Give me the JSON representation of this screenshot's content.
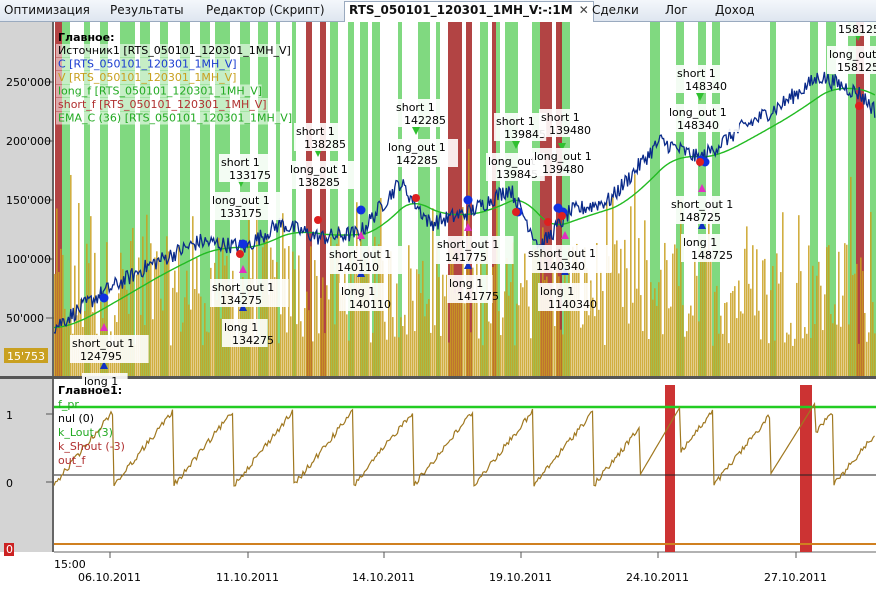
{
  "tabs": [
    {
      "label": "Оптимизация",
      "active": false
    },
    {
      "label": "Результаты",
      "active": false
    },
    {
      "label": "Редактор (Скрипт)",
      "active": false
    },
    {
      "label": "RTS_050101_120301_1MH_V:-:1M",
      "active": true
    },
    {
      "label": "Сделки",
      "active": false
    },
    {
      "label": "Лог",
      "active": false
    },
    {
      "label": "Доход",
      "active": false
    }
  ],
  "icons": {
    "close": "close-icon",
    "signal_long": "blue-up-arrow",
    "signal_short": "green-down-arrow",
    "marker_up": "magenta-triangle-up",
    "marker_down": "red-triangle-down"
  },
  "colors": {
    "price": "#0a2a8a",
    "ema": "#22bb22",
    "volume": "#c9a020",
    "long_band": "#55cc55",
    "short_band": "#aa3030",
    "f_pr": "#22cc22",
    "nul": "#222222",
    "k_shout": "#d08020",
    "out_f": "#cc3333",
    "osc": "#a07820"
  },
  "main_panel": {
    "title": "Главное:",
    "legend": [
      {
        "text": "Источник1 [RTS_050101_120301_1MH_V]",
        "color": "#000000"
      },
      {
        "text": "C [RTS_050101_120301_1MH_V]",
        "color": "#1a3cd0"
      },
      {
        "text": "V [RTS_050101_120301_1MH_V]",
        "color": "#c9a020"
      },
      {
        "text": "long_f [RTS_050101_120301_1MH_V]",
        "color": "#22aa22"
      },
      {
        "text": "short_f [RTS_050101_120301_1MH_V]",
        "color": "#b03030"
      },
      {
        "text": "EMA_C (36) [RTS_050101_120301_1MH_V]",
        "color": "#22aa22"
      }
    ],
    "y_ticks": [
      "250'000",
      "200'000",
      "150'000",
      "100'000",
      "50'000"
    ],
    "volume_label": "15'753",
    "labels": [
      {
        "l1": "short 1",
        "l2": "133175"
      },
      {
        "l1": "long_out 1",
        "l2": "133175"
      },
      {
        "l1": "short_out 1",
        "l2": "134275"
      },
      {
        "l1": "long 1",
        "l2": "134275"
      },
      {
        "l1": "short_out 1",
        "l2": "124795"
      },
      {
        "l1": "long 1",
        "l2": ""
      },
      {
        "l1": "short 1",
        "l2": "138285"
      },
      {
        "l1": "long_out 1",
        "l2": "138285"
      },
      {
        "l1": "short_out 1",
        "l2": "140110"
      },
      {
        "l1": "long 1",
        "l2": "140110"
      },
      {
        "l1": "short 1",
        "l2": "142285"
      },
      {
        "l1": "long_out 1",
        "l2": "142285"
      },
      {
        "l1": "short_out 1",
        "l2": "141775"
      },
      {
        "l1": "long 1",
        "l2": "141775"
      },
      {
        "l1": "short 1",
        "l2": "139845"
      },
      {
        "l1": "long_out",
        "l2": "139845"
      },
      {
        "l1": "short 1",
        "l2": "139480"
      },
      {
        "l1": "long_out 1",
        "l2": "139480"
      },
      {
        "l1": "sshort_out 1",
        "l2": "1140340"
      },
      {
        "l1": "long 1",
        "l2": "1140340"
      },
      {
        "l1": "short 1",
        "l2": "148340"
      },
      {
        "l1": "long_out 1",
        "l2": "148340"
      },
      {
        "l1": "short_out 1",
        "l2": "148725"
      },
      {
        "l1": "long 1",
        "l2": "148725"
      },
      {
        "l1": "158125",
        "l2": ""
      },
      {
        "l1": "long_out",
        "l2": "158125"
      }
    ]
  },
  "sub_panel": {
    "title": "Главное1:",
    "legend": [
      {
        "text": "f_pr",
        "color": "#22aa22"
      },
      {
        "text": "nul (0)",
        "color": "#000000"
      },
      {
        "text": "k_Lout (3)",
        "color": "#22aa22"
      },
      {
        "text": "k_Shout (-3)",
        "color": "#b03030"
      },
      {
        "text": "out_f",
        "color": "#b03030"
      }
    ],
    "y_ticks": [
      "1",
      "0"
    ],
    "zero_label": "0"
  },
  "x_axis": {
    "time_label": "15:00",
    "dates": [
      "06.10.2011",
      "11.10.2011",
      "14.10.2011",
      "19.10.2011",
      "24.10.2011",
      "27.10.2011"
    ]
  }
}
